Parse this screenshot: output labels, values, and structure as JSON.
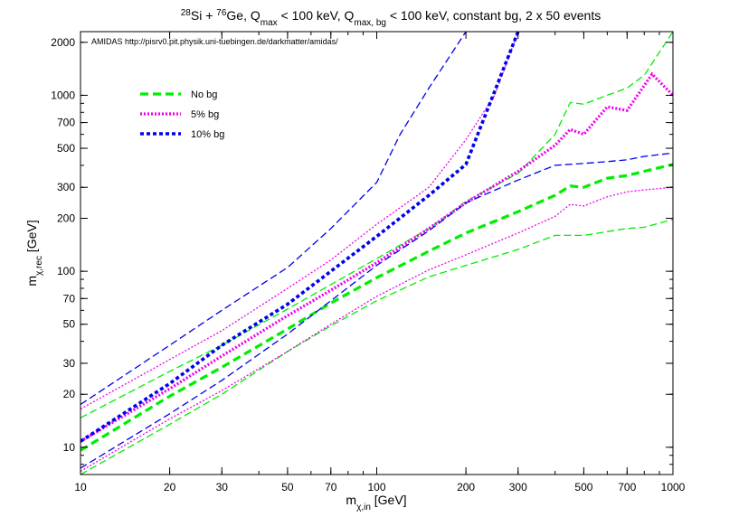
{
  "chart_data": {
    "type": "line",
    "title_runs": [
      {
        "t": "28",
        "s": "sup"
      },
      {
        "t": "Si + ",
        "s": ""
      },
      {
        "t": "76",
        "s": "sup"
      },
      {
        "t": "Ge, Q",
        "s": ""
      },
      {
        "t": "max",
        "s": "sub"
      },
      {
        "t": " < 100 keV, Q",
        "s": ""
      },
      {
        "t": "max, bg",
        "s": "sub"
      },
      {
        "t": " < 100 keV, constant bg, 2 x 50 events",
        "s": ""
      }
    ],
    "credit": "AMIDAS   http://pisrv0.pit.physik.uni-tuebingen.de/darkmatter/amidas/",
    "xlabel_runs": [
      {
        "t": "m",
        "s": ""
      },
      {
        "t": "χ,in",
        "s": "sub"
      },
      {
        "t": " [GeV]",
        "s": ""
      }
    ],
    "ylabel_runs": [
      {
        "t": "m",
        "s": ""
      },
      {
        "t": "χ,rec",
        "s": "sub"
      },
      {
        "t": " [GeV]",
        "s": ""
      }
    ],
    "x_scale": "log",
    "y_scale": "log",
    "xlim": [
      10,
      1000
    ],
    "ylim": [
      7,
      2300
    ],
    "x_ticks": [
      10,
      20,
      30,
      50,
      70,
      100,
      200,
      300,
      500,
      700,
      1000
    ],
    "x_tick_labels": [
      "10",
      "20",
      "30",
      "50",
      "70",
      "100",
      "200",
      "300",
      "500",
      "700",
      "1000"
    ],
    "y_ticks": [
      10,
      20,
      30,
      50,
      70,
      100,
      200,
      300,
      500,
      700,
      1000,
      2000
    ],
    "y_tick_labels": [
      "10",
      "20",
      "30",
      "50",
      "70",
      "100",
      "200",
      "300",
      "500",
      "700",
      "1000",
      "2000"
    ],
    "grid": false,
    "legend_position": "top-left",
    "legend": [
      {
        "label": "No bg",
        "color": "#00ee00",
        "style": "dashed-thick"
      },
      {
        "label": "5% bg",
        "color": "#ee00ee",
        "style": "dotted-thick"
      },
      {
        "label": "10% bg",
        "color": "#0000ee",
        "style": "dashdot-thick"
      }
    ],
    "series": [
      {
        "group": "No bg",
        "role": "median",
        "color": "#00ee00",
        "style": "dashed-thick",
        "points": [
          [
            10,
            9.6
          ],
          [
            20,
            19.5
          ],
          [
            30,
            28.5
          ],
          [
            50,
            47
          ],
          [
            70,
            66
          ],
          [
            100,
            92
          ],
          [
            150,
            130
          ],
          [
            200,
            165
          ],
          [
            300,
            218
          ],
          [
            400,
            270
          ],
          [
            450,
            305
          ],
          [
            500,
            300
          ],
          [
            600,
            338
          ],
          [
            700,
            350
          ],
          [
            800,
            370
          ],
          [
            1000,
            405
          ]
        ]
      },
      {
        "group": "No bg",
        "role": "upper",
        "color": "#00ee00",
        "style": "dashed-thin",
        "points": [
          [
            10,
            14.7
          ],
          [
            20,
            27
          ],
          [
            30,
            38
          ],
          [
            50,
            61
          ],
          [
            70,
            84
          ],
          [
            100,
            118
          ],
          [
            150,
            175
          ],
          [
            200,
            250
          ],
          [
            300,
            360
          ],
          [
            400,
            600
          ],
          [
            450,
            910
          ],
          [
            500,
            890
          ],
          [
            600,
            1000
          ],
          [
            700,
            1100
          ],
          [
            800,
            1300
          ],
          [
            1000,
            2300
          ]
        ]
      },
      {
        "group": "No bg",
        "role": "lower",
        "color": "#00ee00",
        "style": "dashed-thin",
        "points": [
          [
            10,
            7
          ],
          [
            20,
            13.5
          ],
          [
            30,
            20
          ],
          [
            50,
            35
          ],
          [
            70,
            49
          ],
          [
            100,
            68
          ],
          [
            150,
            93
          ],
          [
            200,
            108
          ],
          [
            300,
            133
          ],
          [
            400,
            160
          ],
          [
            500,
            160
          ],
          [
            600,
            168
          ],
          [
            700,
            175
          ],
          [
            800,
            178
          ],
          [
            1000,
            197
          ]
        ]
      },
      {
        "group": "5% bg",
        "role": "median",
        "color": "#ee00ee",
        "style": "dotted-thick",
        "points": [
          [
            10,
            10.8
          ],
          [
            20,
            21.5
          ],
          [
            30,
            33
          ],
          [
            50,
            56
          ],
          [
            70,
            78
          ],
          [
            100,
            112
          ],
          [
            150,
            175
          ],
          [
            200,
            245
          ],
          [
            300,
            370
          ],
          [
            400,
            520
          ],
          [
            450,
            640
          ],
          [
            500,
            600
          ],
          [
            600,
            860
          ],
          [
            700,
            820
          ],
          [
            850,
            1320
          ],
          [
            1000,
            1000
          ]
        ]
      },
      {
        "group": "5% bg",
        "role": "upper",
        "color": "#ee00ee",
        "style": "dotted-thin",
        "points": [
          [
            10,
            16.5
          ],
          [
            20,
            31.5
          ],
          [
            30,
            46
          ],
          [
            50,
            80
          ],
          [
            70,
            116
          ],
          [
            100,
            185
          ],
          [
            150,
            300
          ],
          [
            200,
            560
          ],
          [
            250,
            1000
          ],
          [
            300,
            2300
          ]
        ]
      },
      {
        "group": "5% bg",
        "role": "lower",
        "color": "#ee00ee",
        "style": "dotted-thin",
        "points": [
          [
            10,
            7.3
          ],
          [
            20,
            14.5
          ],
          [
            30,
            21
          ],
          [
            50,
            35
          ],
          [
            70,
            50
          ],
          [
            100,
            72
          ],
          [
            150,
            102
          ],
          [
            200,
            124
          ],
          [
            300,
            165
          ],
          [
            400,
            205
          ],
          [
            450,
            240
          ],
          [
            500,
            235
          ],
          [
            600,
            265
          ],
          [
            700,
            283
          ],
          [
            800,
            290
          ],
          [
            1000,
            300
          ]
        ]
      },
      {
        "group": "10% bg",
        "role": "median",
        "color": "#0000ee",
        "style": "dashdot-thick",
        "points": [
          [
            10,
            10.8
          ],
          [
            20,
            23
          ],
          [
            30,
            38
          ],
          [
            50,
            65
          ],
          [
            70,
            100
          ],
          [
            100,
            158
          ],
          [
            150,
            270
          ],
          [
            200,
            405
          ],
          [
            300,
            2300
          ]
        ]
      },
      {
        "group": "10% bg",
        "role": "upper",
        "color": "#0000ee",
        "style": "dashed-thin",
        "points": [
          [
            10,
            17.5
          ],
          [
            20,
            38
          ],
          [
            30,
            60
          ],
          [
            50,
            105
          ],
          [
            70,
            175
          ],
          [
            100,
            320
          ],
          [
            120,
            600
          ],
          [
            150,
            1100
          ],
          [
            200,
            2300
          ]
        ]
      },
      {
        "group": "10% bg",
        "role": "lower",
        "color": "#0000ee",
        "style": "dashed-thin",
        "points": [
          [
            10,
            7.6
          ],
          [
            20,
            15.5
          ],
          [
            30,
            24
          ],
          [
            50,
            44
          ],
          [
            70,
            68
          ],
          [
            100,
            108
          ],
          [
            150,
            170
          ],
          [
            200,
            245
          ],
          [
            300,
            330
          ],
          [
            400,
            400
          ],
          [
            500,
            410
          ],
          [
            600,
            420
          ],
          [
            700,
            430
          ],
          [
            800,
            450
          ],
          [
            1000,
            470
          ]
        ]
      }
    ]
  }
}
